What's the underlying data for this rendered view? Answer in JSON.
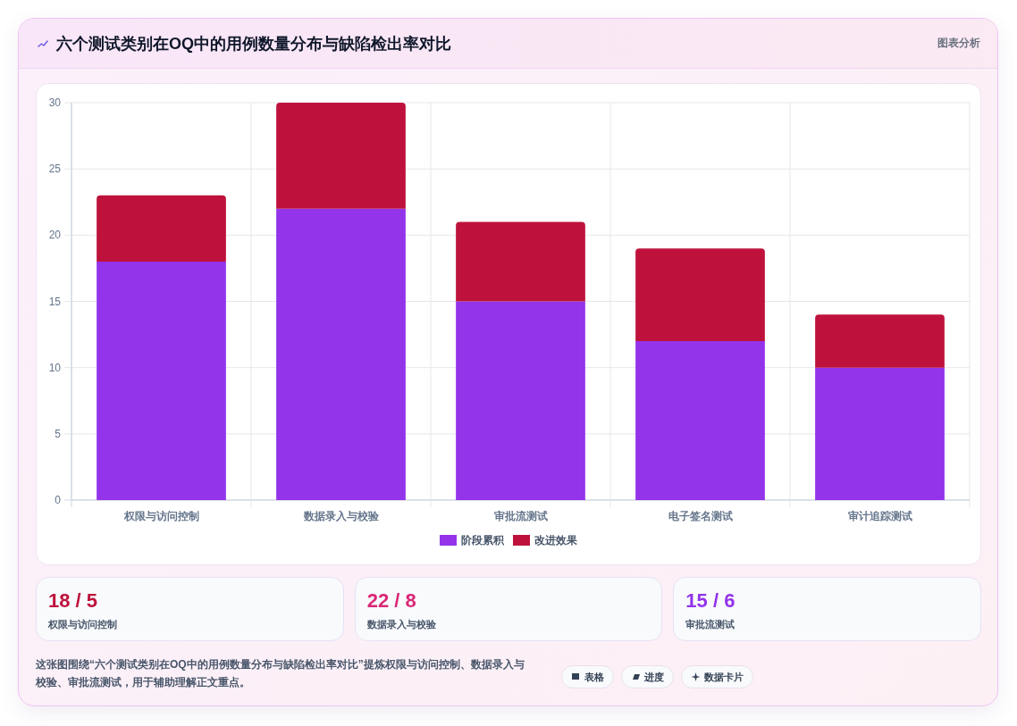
{
  "chart_data": [
    {
      "type": "bar",
      "title": "六个测试类别在OQ中的用例数量分布与缺陷检出率对比",
      "categories": [
        "权限与访问控制",
        "数据录入与校验",
        "审批流测试",
        "电子签名测试",
        "审计追踪测试"
      ],
      "series": [
        {
          "name": "阶段累积",
          "color": "#9333ea",
          "values": [
            18,
            22,
            15,
            12,
            10
          ]
        },
        {
          "name": "改进效果",
          "color": "#be123c",
          "values": [
            5,
            8,
            6,
            7,
            4
          ]
        }
      ],
      "stacked": true,
      "ylim": [
        0,
        30
      ],
      "yticks": [
        0,
        5,
        10,
        15,
        20,
        25,
        30
      ],
      "grid": true,
      "legend": "bottom",
      "annotations": [
        "图表分析",
        "这张图围绕“六个测试类别在OQ中的用例数量分布与缺陷检出率对比”提炼权限与访问控制、数据录入与校验、审批流测试，用于辅助理解正文重点。",
        "表格",
        "进度",
        "数据卡片"
      ]
    },
    {
      "type": "other",
      "title": "18 / 5",
      "subtitle": "权限与访问控制",
      "color": "#be123c"
    },
    {
      "type": "other",
      "title": "22 / 8",
      "subtitle": "数据录入与校验",
      "color": "#db2777"
    },
    {
      "type": "other",
      "title": "15 / 6",
      "subtitle": "审批流测试",
      "color": "#9333ea"
    }
  ]
}
